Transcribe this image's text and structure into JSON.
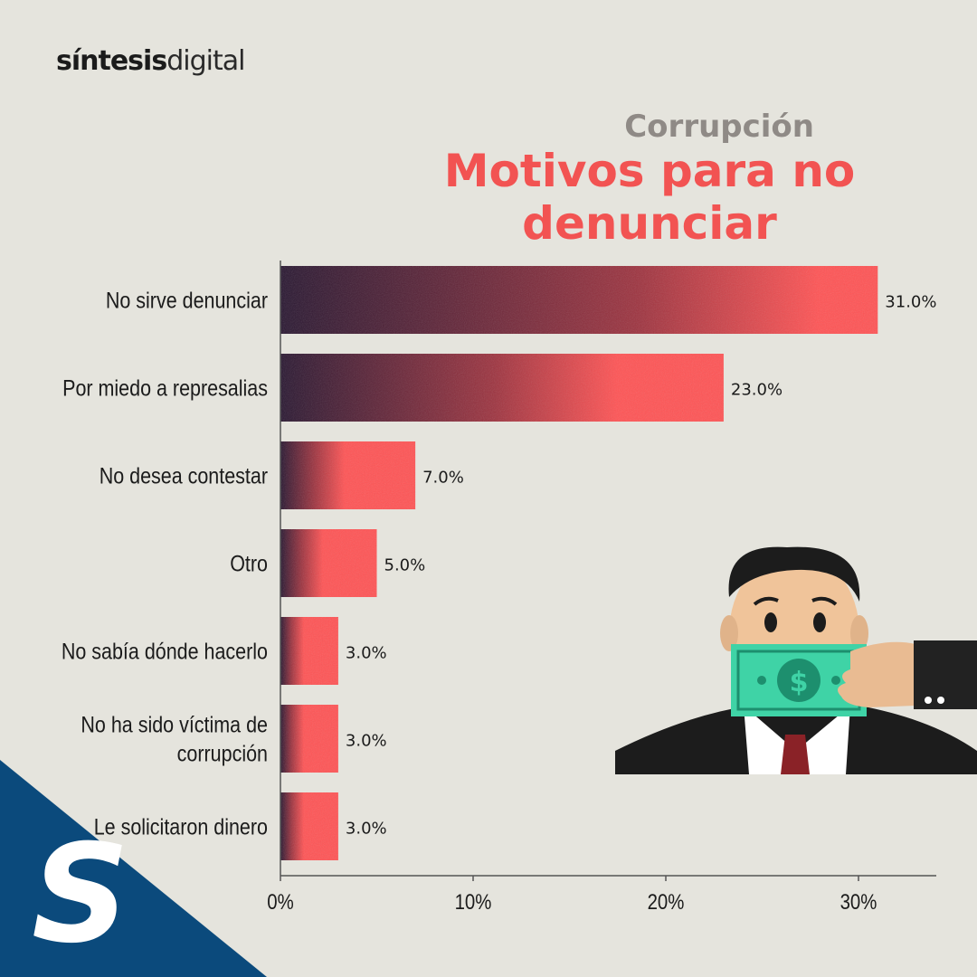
{
  "brand": {
    "logo_bold": "síntesis",
    "logo_light": "digital",
    "corner_letter": "S"
  },
  "header": {
    "subtitle": "Corrupción",
    "title": "Motivos para no denunciar"
  },
  "colors": {
    "bar": "#ff5455",
    "bar_dark": "#2a1832",
    "title": "#f25352",
    "subtitle": "#8f8a86",
    "background": "#e5e4dd",
    "corner": "#0b4a7c"
  },
  "illustration": {
    "name": "man-gagged-with-money-icon"
  },
  "chart_data": {
    "type": "bar",
    "orientation": "horizontal",
    "categories": [
      "No sirve denunciar",
      "Por miedo a represalias",
      "No desea contestar",
      "Otro",
      "No sabía dónde hacerlo",
      "No ha sido víctima de corrupción",
      "Le solicitaron dinero"
    ],
    "category_lines": [
      [
        "No sirve denunciar"
      ],
      [
        "Por miedo a represalias"
      ],
      [
        "No desea contestar"
      ],
      [
        "Otro"
      ],
      [
        "No sabía dónde hacerlo"
      ],
      [
        "No ha sido víctima de",
        "corrupción"
      ],
      [
        "Le solicitaron dinero"
      ]
    ],
    "values": [
      31.0,
      23.0,
      7.0,
      5.0,
      3.0,
      3.0,
      3.0
    ],
    "value_labels": [
      "31.0%",
      "23.0%",
      "7.0%",
      "5.0%",
      "3.0%",
      "3.0%",
      "3.0%"
    ],
    "xticks": [
      0,
      10,
      20,
      30
    ],
    "xtick_labels": [
      "0%",
      "10%",
      "20%",
      "30%"
    ],
    "xlim": [
      0,
      34
    ],
    "grid": false,
    "legend": "none",
    "style": "bars with dark grainy gradient on left fading into red"
  }
}
